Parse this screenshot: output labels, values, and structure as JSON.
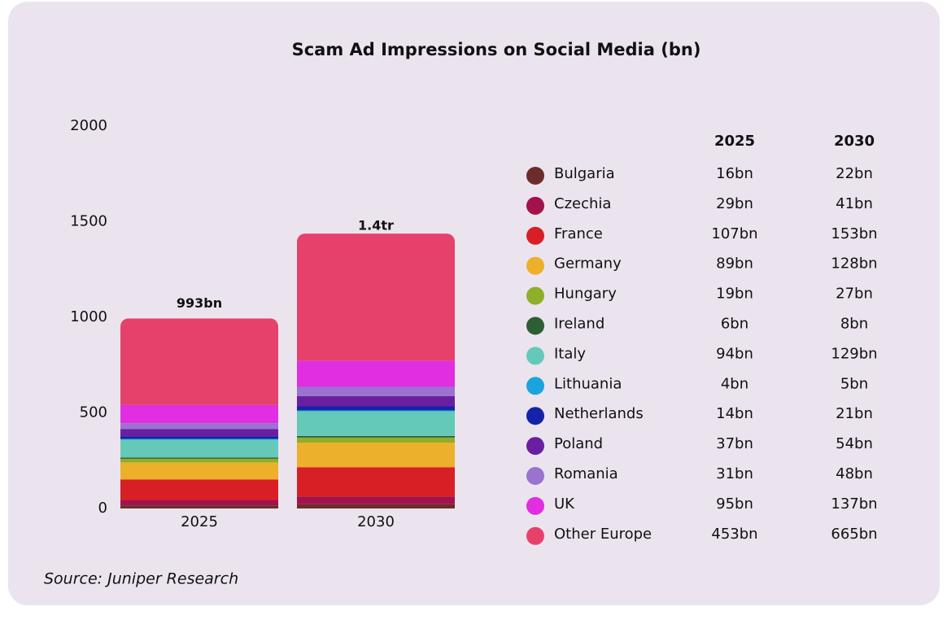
{
  "chart_data": {
    "type": "stacked_bar",
    "title": "Scam Ad Impressions on Social Media (bn)",
    "categories": [
      "2025",
      "2030"
    ],
    "series": [
      {
        "name": "Bulgaria",
        "color": "#6b2d2a",
        "values": [
          16,
          22
        ],
        "value_labels": [
          "16bn",
          "22bn"
        ]
      },
      {
        "name": "Czechia",
        "color": "#a3124a",
        "values": [
          29,
          41
        ],
        "value_labels": [
          "29bn",
          "41bn"
        ]
      },
      {
        "name": "France",
        "color": "#d91f26",
        "values": [
          107,
          153
        ],
        "value_labels": [
          "107bn",
          "153bn"
        ]
      },
      {
        "name": "Germany",
        "color": "#ecb02a",
        "values": [
          89,
          128
        ],
        "value_labels": [
          "89bn",
          "128bn"
        ]
      },
      {
        "name": "Hungary",
        "color": "#8fae2a",
        "values": [
          19,
          27
        ],
        "value_labels": [
          "19bn",
          "27bn"
        ]
      },
      {
        "name": "Ireland",
        "color": "#2e5e33",
        "values": [
          6,
          8
        ],
        "value_labels": [
          "6bn",
          "8bn"
        ]
      },
      {
        "name": "Italy",
        "color": "#64c9b8",
        "values": [
          94,
          129
        ],
        "value_labels": [
          "94bn",
          "129bn"
        ]
      },
      {
        "name": "Lithuania",
        "color": "#1aa3dd",
        "values": [
          4,
          5
        ],
        "value_labels": [
          "4bn",
          "5bn"
        ]
      },
      {
        "name": "Netherlands",
        "color": "#1423a8",
        "values": [
          14,
          21
        ],
        "value_labels": [
          "14bn",
          "21bn"
        ]
      },
      {
        "name": "Poland",
        "color": "#6a1fa0",
        "values": [
          37,
          54
        ],
        "value_labels": [
          "37bn",
          "54bn"
        ]
      },
      {
        "name": "Romania",
        "color": "#9a72cf",
        "values": [
          31,
          48
        ],
        "value_labels": [
          "31bn",
          "48bn"
        ]
      },
      {
        "name": "UK",
        "color": "#e02ee0",
        "values": [
          95,
          137
        ],
        "value_labels": [
          "95bn",
          "137bn"
        ]
      },
      {
        "name": "Other Europe",
        "color": "#e6416b",
        "values": [
          453,
          665
        ],
        "value_labels": [
          "453bn",
          "665bn"
        ]
      }
    ],
    "totals": {
      "values": [
        993,
        1400
      ],
      "value_labels": [
        "993bn",
        "1.4tr"
      ]
    },
    "ylim": [
      0,
      2000
    ],
    "yticks": [
      0,
      500,
      1000,
      1500,
      2000
    ],
    "grid": false,
    "source": "Source: Juniper Research"
  }
}
